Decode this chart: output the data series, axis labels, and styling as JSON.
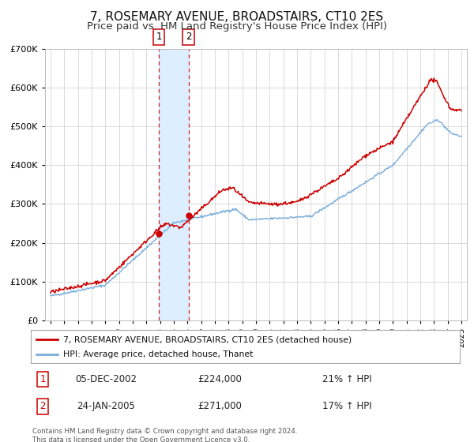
{
  "title": "7, ROSEMARY AVENUE, BROADSTAIRS, CT10 2ES",
  "subtitle": "Price paid vs. HM Land Registry's House Price Index (HPI)",
  "title_fontsize": 11,
  "subtitle_fontsize": 9.5,
  "red_line_label": "7, ROSEMARY AVENUE, BROADSTAIRS, CT10 2ES (detached house)",
  "blue_line_label": "HPI: Average price, detached house, Thanet",
  "transaction1_date": "05-DEC-2002",
  "transaction1_price": "£224,000",
  "transaction1_hpi": "21% ↑ HPI",
  "transaction1_x": 2002.92,
  "transaction1_y": 224000,
  "transaction2_date": "24-JAN-2005",
  "transaction2_price": "£271,000",
  "transaction2_hpi": "17% ↑ HPI",
  "transaction2_x": 2005.07,
  "transaction2_y": 271000,
  "vline1_x": 2002.92,
  "vline2_x": 2005.07,
  "shading_x1": 2002.92,
  "shading_x2": 2005.07,
  "red_color": "#cc0000",
  "blue_color": "#7aaddc",
  "shade_color": "#ddeeff",
  "background_color": "#ffffff",
  "grid_color": "#cccccc",
  "footer_text": "Contains HM Land Registry data © Crown copyright and database right 2024.\nThis data is licensed under the Open Government Licence v3.0.",
  "ylim": [
    0,
    700000
  ],
  "yticks": [
    0,
    100000,
    200000,
    300000,
    400000,
    500000,
    600000,
    700000
  ],
  "xlim_start": 1994.6,
  "xlim_end": 2025.4,
  "xticks": [
    1995,
    1996,
    1997,
    1998,
    1999,
    2000,
    2001,
    2002,
    2003,
    2004,
    2005,
    2006,
    2007,
    2008,
    2009,
    2010,
    2011,
    2012,
    2013,
    2014,
    2015,
    2016,
    2017,
    2018,
    2019,
    2020,
    2021,
    2022,
    2023,
    2024,
    2025
  ]
}
